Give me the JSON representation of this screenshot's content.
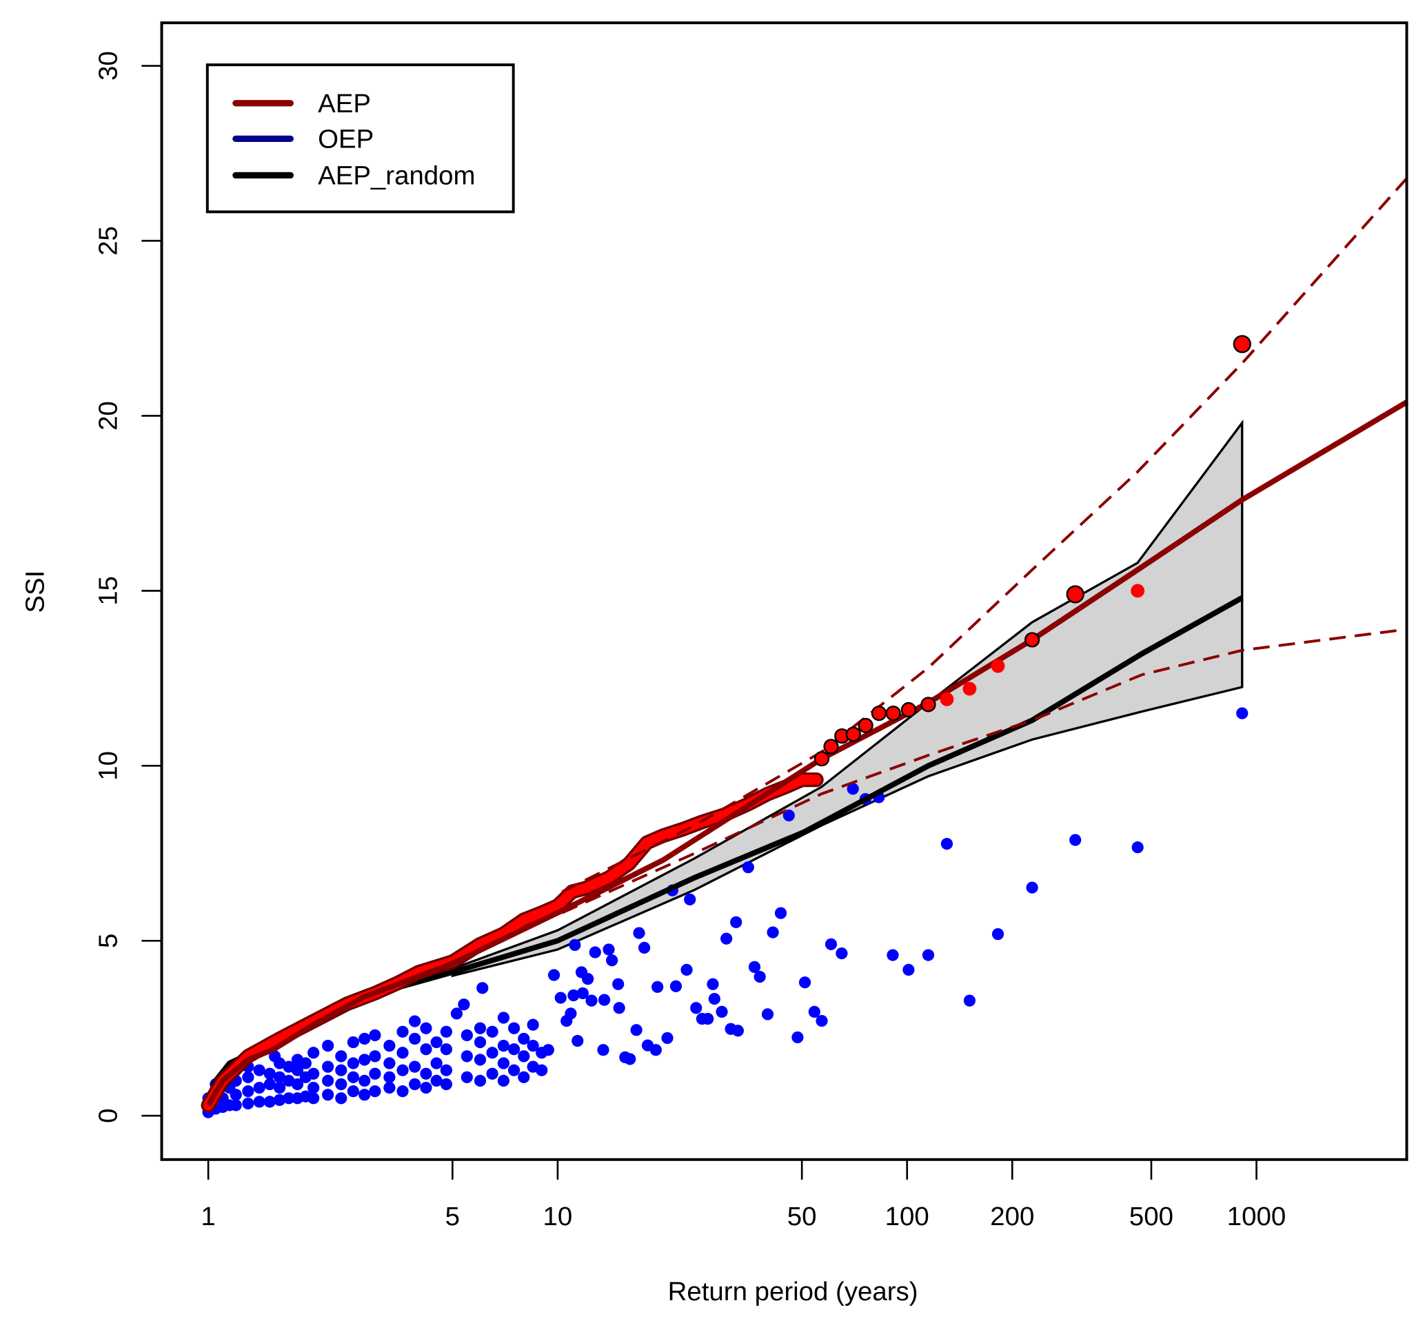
{
  "chart_data": {
    "type": "scatter",
    "title": "",
    "xlabel": "Return period (years)",
    "ylabel": "SSI",
    "x_scale": "log",
    "xlim": [
      0.9,
      2700
    ],
    "ylim": [
      -1.2,
      31.2
    ],
    "x_ticks": [
      1,
      5,
      10,
      50,
      100,
      200,
      500,
      1000
    ],
    "x_tick_labels": [
      "1",
      "5",
      "10",
      "50",
      "100",
      "200",
      "500",
      "1000"
    ],
    "y_ticks": [
      0,
      5,
      10,
      15,
      20,
      25,
      30
    ],
    "y_tick_labels": [
      "0",
      "5",
      "10",
      "15",
      "20",
      "25",
      "30"
    ],
    "grid": false,
    "legend": {
      "placement": "top-left",
      "entries": [
        {
          "label": "AEP",
          "color": "#8b0000"
        },
        {
          "label": "OEP",
          "color": "#00008b"
        },
        {
          "label": "AEP_random",
          "color": "#000000"
        }
      ]
    },
    "colors": {
      "aep_fit": "#8b0000",
      "aep_points": "#ff0000",
      "oep_points": "#0000ff",
      "aep_random": "#000000",
      "band_fill": "#d3d3d3"
    },
    "aep_fit": [
      [
        1,
        0.3
      ],
      [
        1.1,
        1.0
      ],
      [
        1.3,
        1.6
      ],
      [
        1.54,
        1.9
      ],
      [
        2,
        2.6
      ],
      [
        2.8,
        3.4
      ],
      [
        5,
        4.35
      ],
      [
        10,
        5.8
      ],
      [
        20,
        7.3
      ],
      [
        57,
        10.2
      ],
      [
        115,
        11.8
      ],
      [
        228,
        13.6
      ],
      [
        457,
        15.6
      ],
      [
        910,
        17.6
      ],
      [
        2700,
        20.4
      ]
    ],
    "aep_upper_ci": [
      [
        10.3,
        6.4
      ],
      [
        24.7,
        8.3
      ],
      [
        57,
        10.4
      ],
      [
        115,
        12.8
      ],
      [
        228,
        15.6
      ],
      [
        457,
        18.4
      ],
      [
        910,
        21.5
      ],
      [
        2700,
        26.8
      ]
    ],
    "aep_lower_ci": [
      [
        10.3,
        5.8
      ],
      [
        24.7,
        7.5
      ],
      [
        57,
        9.2
      ],
      [
        115,
        10.3
      ],
      [
        228,
        11.3
      ],
      [
        470,
        12.6
      ],
      [
        910,
        13.3
      ],
      [
        2700,
        13.9
      ]
    ],
    "aep_random": [
      [
        1,
        0.45
      ],
      [
        1.05,
        1.0
      ],
      [
        1.15,
        1.5
      ],
      [
        1.54,
        2.1
      ],
      [
        2.8,
        3.4
      ],
      [
        5,
        4.1
      ],
      [
        10,
        5.0
      ],
      [
        24.6,
        6.8
      ],
      [
        50.6,
        8.1
      ],
      [
        115,
        10.0
      ],
      [
        228,
        11.3
      ],
      [
        470,
        13.2
      ],
      [
        910,
        14.8
      ]
    ],
    "aep_random_band_upper": [
      [
        5,
        4.2
      ],
      [
        10,
        5.3
      ],
      [
        24.6,
        7.35
      ],
      [
        57,
        9.4
      ],
      [
        115,
        11.8
      ],
      [
        228,
        14.1
      ],
      [
        457,
        15.8
      ],
      [
        910,
        19.8
      ]
    ],
    "aep_random_band_lower": [
      [
        5,
        4.0
      ],
      [
        10,
        4.75
      ],
      [
        24.6,
        6.45
      ],
      [
        57,
        8.3
      ],
      [
        115,
        9.7
      ],
      [
        228,
        10.75
      ],
      [
        470,
        11.55
      ],
      [
        910,
        12.25
      ]
    ],
    "aep_points": [
      [
        1,
        0.3
      ],
      [
        1.1,
        1.0
      ],
      [
        1.3,
        1.7
      ],
      [
        1.6,
        2.2
      ],
      [
        2,
        2.7
      ],
      [
        2.5,
        3.2
      ],
      [
        3,
        3.5
      ],
      [
        3.5,
        3.8
      ],
      [
        4,
        4.1
      ],
      [
        5,
        4.4
      ],
      [
        6,
        4.9
      ],
      [
        7,
        5.2
      ],
      [
        8,
        5.6
      ],
      [
        9,
        5.8
      ],
      [
        10,
        6.0
      ],
      [
        11,
        6.4
      ],
      [
        12,
        6.5
      ],
      [
        14,
        6.8
      ],
      [
        16,
        7.2
      ],
      [
        18,
        7.8
      ],
      [
        20,
        8.0
      ],
      [
        23,
        8.2
      ],
      [
        26,
        8.4
      ],
      [
        30,
        8.6
      ],
      [
        35,
        8.9
      ],
      [
        40,
        9.2
      ],
      [
        45,
        9.4
      ],
      [
        50,
        9.6
      ],
      [
        55,
        9.6
      ],
      [
        57,
        10.2
      ],
      [
        60.6,
        10.55
      ],
      [
        65.1,
        10.85
      ],
      [
        70.2,
        10.9
      ],
      [
        76.1,
        11.15
      ],
      [
        83.1,
        11.5
      ],
      [
        91.3,
        11.5
      ],
      [
        101,
        11.6
      ],
      [
        115,
        11.75
      ],
      [
        130,
        11.9
      ],
      [
        151,
        12.2
      ],
      [
        182,
        12.85
      ],
      [
        228,
        13.6
      ],
      [
        303,
        14.9
      ],
      [
        457,
        15.0
      ],
      [
        910,
        22.05
      ]
    ],
    "oep_points": [
      [
        1,
        0.1
      ],
      [
        1,
        0.3
      ],
      [
        1,
        0.5
      ],
      [
        1.05,
        0.2
      ],
      [
        1.05,
        0.6
      ],
      [
        1.05,
        0.9
      ],
      [
        1.1,
        0.25
      ],
      [
        1.1,
        0.5
      ],
      [
        1.1,
        1.1
      ],
      [
        1.15,
        0.3
      ],
      [
        1.15,
        0.8
      ],
      [
        1.15,
        1.2
      ],
      [
        1.2,
        0.3
      ],
      [
        1.2,
        0.6
      ],
      [
        1.2,
        1.0
      ],
      [
        1.2,
        1.3
      ],
      [
        1.3,
        0.35
      ],
      [
        1.3,
        0.7
      ],
      [
        1.3,
        1.1
      ],
      [
        1.3,
        1.4
      ],
      [
        1.4,
        0.4
      ],
      [
        1.4,
        0.8
      ],
      [
        1.4,
        1.3
      ],
      [
        1.5,
        0.4
      ],
      [
        1.5,
        0.9
      ],
      [
        1.5,
        1.2
      ],
      [
        1.55,
        1.7
      ],
      [
        1.6,
        0.45
      ],
      [
        1.6,
        0.8
      ],
      [
        1.6,
        1.1
      ],
      [
        1.6,
        1.5
      ],
      [
        1.7,
        0.5
      ],
      [
        1.7,
        1.0
      ],
      [
        1.7,
        1.4
      ],
      [
        1.8,
        0.5
      ],
      [
        1.8,
        0.9
      ],
      [
        1.8,
        1.3
      ],
      [
        1.8,
        1.6
      ],
      [
        1.9,
        0.55
      ],
      [
        1.9,
        1.1
      ],
      [
        1.9,
        1.5
      ],
      [
        2,
        0.5
      ],
      [
        2,
        0.8
      ],
      [
        2,
        1.2
      ],
      [
        2,
        1.8
      ],
      [
        2.2,
        0.6
      ],
      [
        2.2,
        1.0
      ],
      [
        2.2,
        1.4
      ],
      [
        2.2,
        2.0
      ],
      [
        2.4,
        0.5
      ],
      [
        2.4,
        0.9
      ],
      [
        2.4,
        1.3
      ],
      [
        2.4,
        1.7
      ],
      [
        2.6,
        0.7
      ],
      [
        2.6,
        1.1
      ],
      [
        2.6,
        1.5
      ],
      [
        2.6,
        2.1
      ],
      [
        2.8,
        0.6
      ],
      [
        2.8,
        1.0
      ],
      [
        2.8,
        1.6
      ],
      [
        2.8,
        2.2
      ],
      [
        3,
        0.7
      ],
      [
        3,
        1.2
      ],
      [
        3,
        1.7
      ],
      [
        3,
        2.3
      ],
      [
        3.3,
        0.8
      ],
      [
        3.3,
        1.1
      ],
      [
        3.3,
        1.5
      ],
      [
        3.3,
        2.0
      ],
      [
        3.6,
        0.7
      ],
      [
        3.6,
        1.3
      ],
      [
        3.6,
        1.8
      ],
      [
        3.6,
        2.4
      ],
      [
        3.9,
        0.9
      ],
      [
        3.9,
        1.4
      ],
      [
        3.9,
        2.2
      ],
      [
        3.9,
        2.7
      ],
      [
        4.2,
        0.8
      ],
      [
        4.2,
        1.2
      ],
      [
        4.2,
        1.9
      ],
      [
        4.2,
        2.5
      ],
      [
        4.5,
        1.0
      ],
      [
        4.5,
        1.5
      ],
      [
        4.5,
        2.1
      ],
      [
        4.8,
        0.9
      ],
      [
        4.8,
        1.3
      ],
      [
        4.8,
        1.9
      ],
      [
        4.8,
        2.4
      ],
      [
        5.14,
        2.92
      ],
      [
        5.39,
        3.18
      ],
      [
        5.5,
        1.1
      ],
      [
        5.5,
        1.7
      ],
      [
        5.5,
        2.3
      ],
      [
        6,
        1.0
      ],
      [
        6,
        1.6
      ],
      [
        6,
        2.1
      ],
      [
        6,
        2.5
      ],
      [
        6.09,
        3.65
      ],
      [
        6.5,
        1.2
      ],
      [
        6.5,
        1.8
      ],
      [
        6.5,
        2.4
      ],
      [
        7,
        1.0
      ],
      [
        7,
        1.5
      ],
      [
        7,
        2.0
      ],
      [
        7,
        2.8
      ],
      [
        7.5,
        1.3
      ],
      [
        7.5,
        1.9
      ],
      [
        7.5,
        2.5
      ],
      [
        8,
        1.1
      ],
      [
        8,
        1.7
      ],
      [
        8,
        2.2
      ],
      [
        8.5,
        1.4
      ],
      [
        8.5,
        2.0
      ],
      [
        8.5,
        2.6
      ],
      [
        9,
        1.3
      ],
      [
        9,
        1.8
      ],
      [
        9.4,
        1.88
      ],
      [
        9.76,
        4.02
      ],
      [
        10.2,
        3.37
      ],
      [
        10.6,
        2.71
      ],
      [
        10.9,
        2.92
      ],
      [
        11.1,
        3.44
      ],
      [
        11.2,
        4.88
      ],
      [
        11.4,
        2.14
      ],
      [
        11.7,
        4.1
      ],
      [
        11.8,
        3.5
      ],
      [
        12.2,
        3.91
      ],
      [
        12.5,
        3.29
      ],
      [
        12.8,
        4.67
      ],
      [
        13.5,
        1.88
      ],
      [
        13.6,
        3.31
      ],
      [
        14.0,
        4.75
      ],
      [
        14.3,
        4.44
      ],
      [
        14.9,
        3.76
      ],
      [
        15.0,
        3.08
      ],
      [
        15.6,
        1.67
      ],
      [
        16.1,
        1.62
      ],
      [
        16.8,
        2.45
      ],
      [
        17.1,
        5.22
      ],
      [
        17.7,
        4.8
      ],
      [
        18.1,
        2.01
      ],
      [
        19.1,
        1.88
      ],
      [
        19.3,
        3.68
      ],
      [
        20.6,
        2.22
      ],
      [
        21.3,
        6.44
      ],
      [
        21.8,
        3.7
      ],
      [
        23.4,
        4.17
      ],
      [
        23.9,
        6.18
      ],
      [
        24.9,
        3.08
      ],
      [
        25.9,
        2.77
      ],
      [
        26.9,
        2.77
      ],
      [
        27.8,
        3.76
      ],
      [
        28.1,
        3.34
      ],
      [
        29.5,
        2.97
      ],
      [
        30.4,
        5.06
      ],
      [
        31.3,
        2.48
      ],
      [
        32.4,
        5.53
      ],
      [
        32.8,
        2.43
      ],
      [
        35.1,
        7.1
      ],
      [
        36.6,
        4.25
      ],
      [
        37.9,
        3.97
      ],
      [
        39.9,
        2.9
      ],
      [
        41.3,
        5.24
      ],
      [
        43.5,
        5.79
      ],
      [
        45.9,
        8.58
      ],
      [
        48.6,
        2.24
      ],
      [
        51.0,
        3.81
      ],
      [
        54.3,
        2.97
      ],
      [
        57,
        2.71
      ],
      [
        60.6,
        4.9
      ],
      [
        65,
        4.64
      ],
      [
        70,
        9.34
      ],
      [
        76,
        9.05
      ],
      [
        83,
        9.1
      ],
      [
        91,
        4.59
      ],
      [
        101,
        4.17
      ],
      [
        115,
        4.59
      ],
      [
        130,
        7.77
      ],
      [
        151,
        3.29
      ],
      [
        182,
        5.19
      ],
      [
        228,
        6.52
      ],
      [
        303,
        7.88
      ],
      [
        457,
        7.67
      ],
      [
        910,
        11.5
      ]
    ]
  }
}
